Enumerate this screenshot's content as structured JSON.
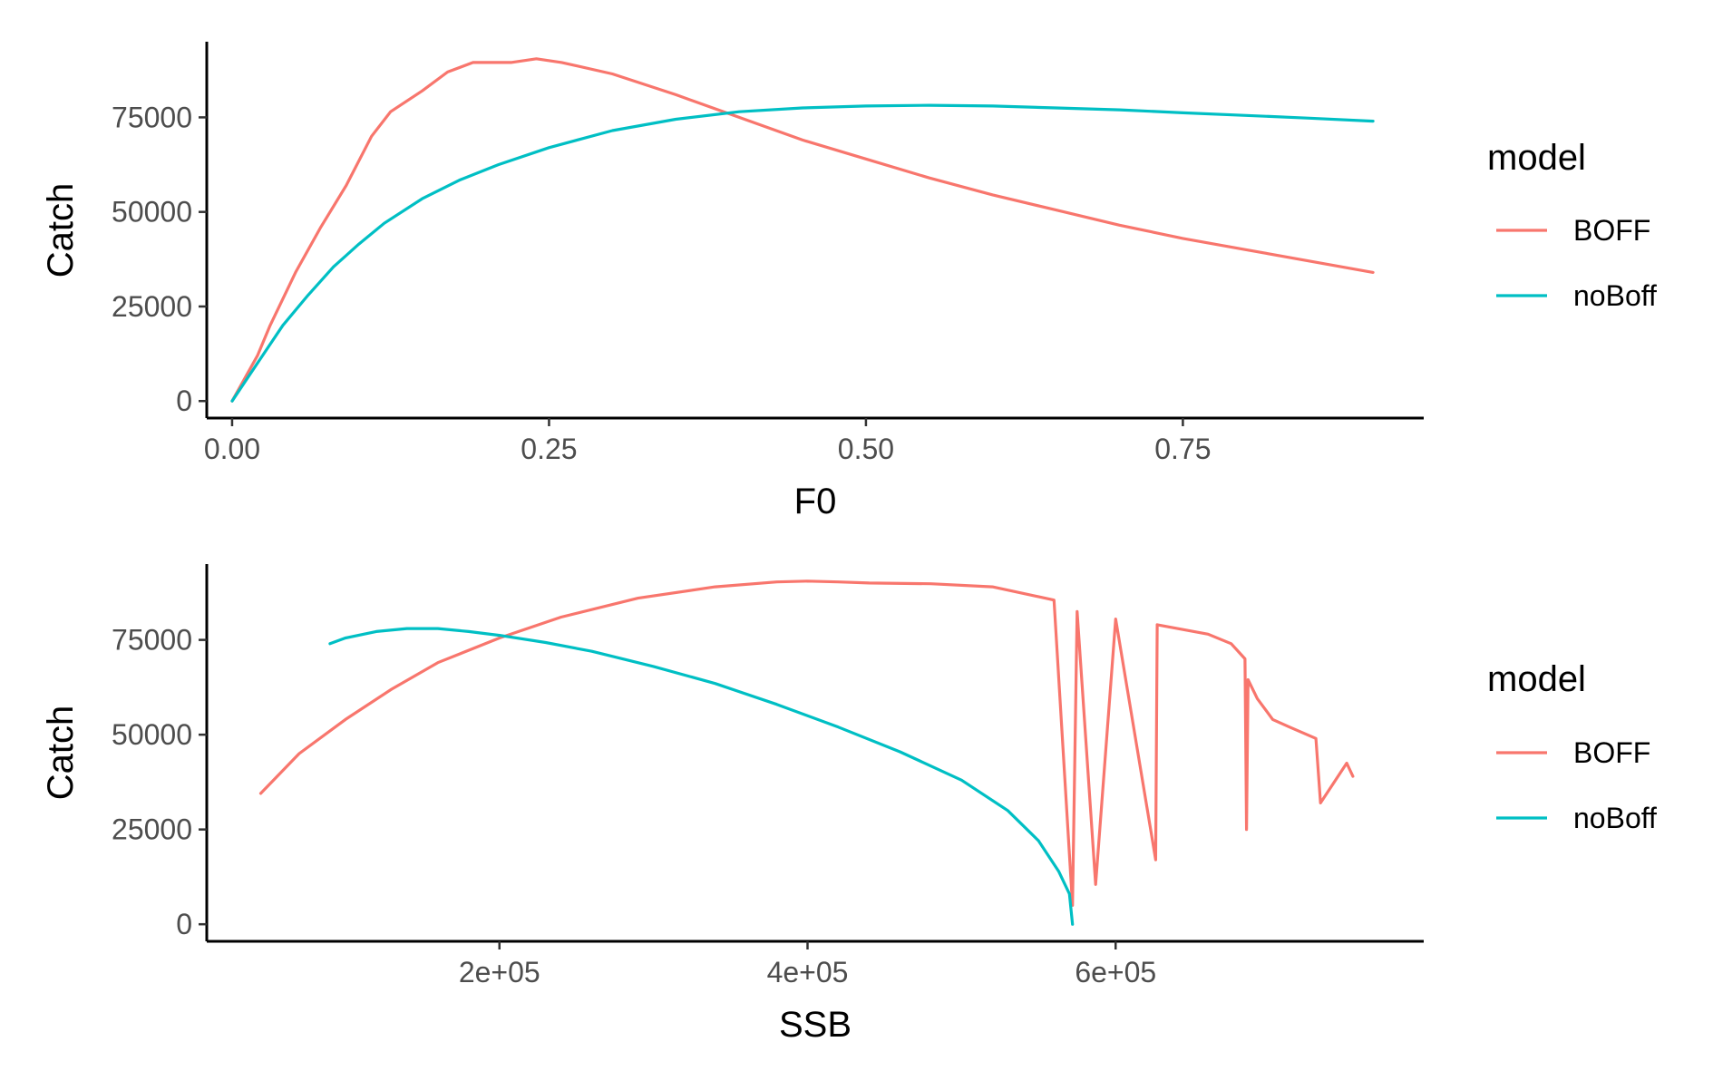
{
  "colors": {
    "BOFF": "#F8766D",
    "noBoff": "#00BFC4"
  },
  "chart_data": [
    {
      "type": "line",
      "xlabel": "F0",
      "ylabel": "Catch",
      "xlim": [
        -0.02,
        0.94
      ],
      "ylim": [
        -4500,
        95000
      ],
      "x_ticks": [
        0.0,
        0.25,
        0.5,
        0.75
      ],
      "x_tick_labels": [
        "0.00",
        "0.25",
        "0.50",
        "0.75"
      ],
      "y_ticks": [
        0,
        25000,
        50000,
        75000
      ],
      "y_tick_labels": [
        "0",
        "25000",
        "50000",
        "75000"
      ],
      "grid": false,
      "legend": {
        "title": "model",
        "position": "right"
      },
      "series": [
        {
          "name": "BOFF",
          "x": [
            0.0,
            0.02,
            0.03,
            0.05,
            0.07,
            0.09,
            0.11,
            0.125,
            0.15,
            0.17,
            0.19,
            0.22,
            0.24,
            0.26,
            0.3,
            0.35,
            0.4,
            0.45,
            0.5,
            0.55,
            0.6,
            0.65,
            0.7,
            0.75,
            0.8,
            0.85,
            0.9
          ],
          "y": [
            0,
            12000,
            20000,
            34000,
            46000,
            57000,
            70000,
            76500,
            82000,
            87000,
            89500,
            89500,
            90500,
            89500,
            86500,
            81000,
            75000,
            69000,
            64000,
            59000,
            54500,
            50500,
            46500,
            43000,
            40000,
            37000,
            34000
          ]
        },
        {
          "name": "noBoff",
          "x": [
            0.0,
            0.02,
            0.04,
            0.06,
            0.08,
            0.1,
            0.12,
            0.15,
            0.18,
            0.21,
            0.25,
            0.3,
            0.35,
            0.4,
            0.45,
            0.5,
            0.55,
            0.6,
            0.65,
            0.7,
            0.75,
            0.8,
            0.85,
            0.9
          ],
          "y": [
            0,
            10000,
            20000,
            28000,
            35500,
            41500,
            47000,
            53500,
            58500,
            62500,
            67000,
            71500,
            74500,
            76500,
            77500,
            78000,
            78200,
            78000,
            77500,
            77000,
            76200,
            75500,
            74800,
            74000
          ]
        }
      ]
    },
    {
      "type": "line",
      "xlabel": "SSB",
      "ylabel": "Catch",
      "xlim": [
        10000,
        800000
      ],
      "ylim": [
        -4500,
        95000
      ],
      "x_ticks": [
        200000,
        400000,
        600000
      ],
      "x_tick_labels": [
        "2e+05",
        "4e+05",
        "6e+05"
      ],
      "y_ticks": [
        0,
        25000,
        50000,
        75000
      ],
      "y_tick_labels": [
        "0",
        "25000",
        "50000",
        "75000"
      ],
      "grid": false,
      "legend": {
        "title": "model",
        "position": "right"
      },
      "series": [
        {
          "name": "BOFF",
          "x": [
            45000,
            70000,
            100000,
            130000,
            160000,
            200000,
            240000,
            290000,
            340000,
            380000,
            400000,
            420000,
            440000,
            480000,
            520000,
            560000,
            572000,
            575000,
            587000,
            600000,
            626000,
            627000,
            660000,
            675000,
            684000,
            685000,
            686000,
            692000,
            702000,
            713000,
            730000,
            733000,
            750000,
            754000
          ],
          "y": [
            34500,
            45000,
            54000,
            62000,
            69000,
            75500,
            81000,
            86000,
            89000,
            90300,
            90500,
            90300,
            90000,
            89800,
            89000,
            85500,
            5000,
            82500,
            10500,
            80500,
            17000,
            79000,
            76500,
            74000,
            70000,
            25000,
            64500,
            59500,
            54000,
            52000,
            49000,
            32000,
            42500,
            39000
          ]
        },
        {
          "name": "noBoff",
          "x": [
            90000,
            100000,
            120000,
            140000,
            160000,
            180000,
            200000,
            230000,
            260000,
            300000,
            340000,
            380000,
            420000,
            460000,
            500000,
            530000,
            550000,
            563000,
            570000,
            572000
          ],
          "y": [
            74000,
            75500,
            77200,
            78000,
            78000,
            77200,
            76200,
            74300,
            72000,
            68000,
            63500,
            58000,
            52000,
            45500,
            38000,
            30000,
            22000,
            14000,
            8000,
            0
          ]
        }
      ]
    }
  ]
}
